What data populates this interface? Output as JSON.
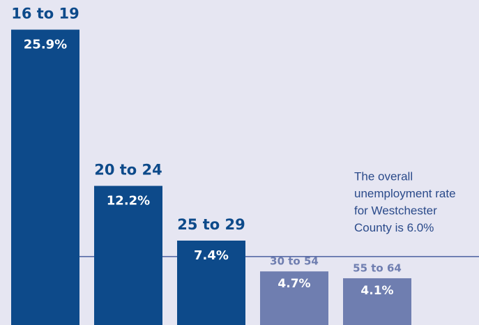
{
  "chart_data": {
    "type": "bar",
    "categories": [
      "16 to 19",
      "20 to 24",
      "25 to 29",
      "30 to 54",
      "55 to 64"
    ],
    "values": [
      25.9,
      12.2,
      7.4,
      4.7,
      4.1
    ],
    "value_labels": [
      "25.9%",
      "12.2%",
      "7.4%",
      "4.7%",
      "4.1%"
    ],
    "colors": [
      "#0d4a8a",
      "#0d4a8a",
      "#0d4a8a",
      "#6f7eb0",
      "#6f7eb0"
    ],
    "emphasis": [
      true,
      true,
      true,
      false,
      false
    ],
    "ylim": [
      0,
      28.5
    ],
    "reference_line": {
      "value": 6.0,
      "color": "#4a5fa0",
      "annotation": [
        "The overall",
        "unemployment rate",
        "for Westchester",
        "County is 6.0%"
      ]
    }
  }
}
